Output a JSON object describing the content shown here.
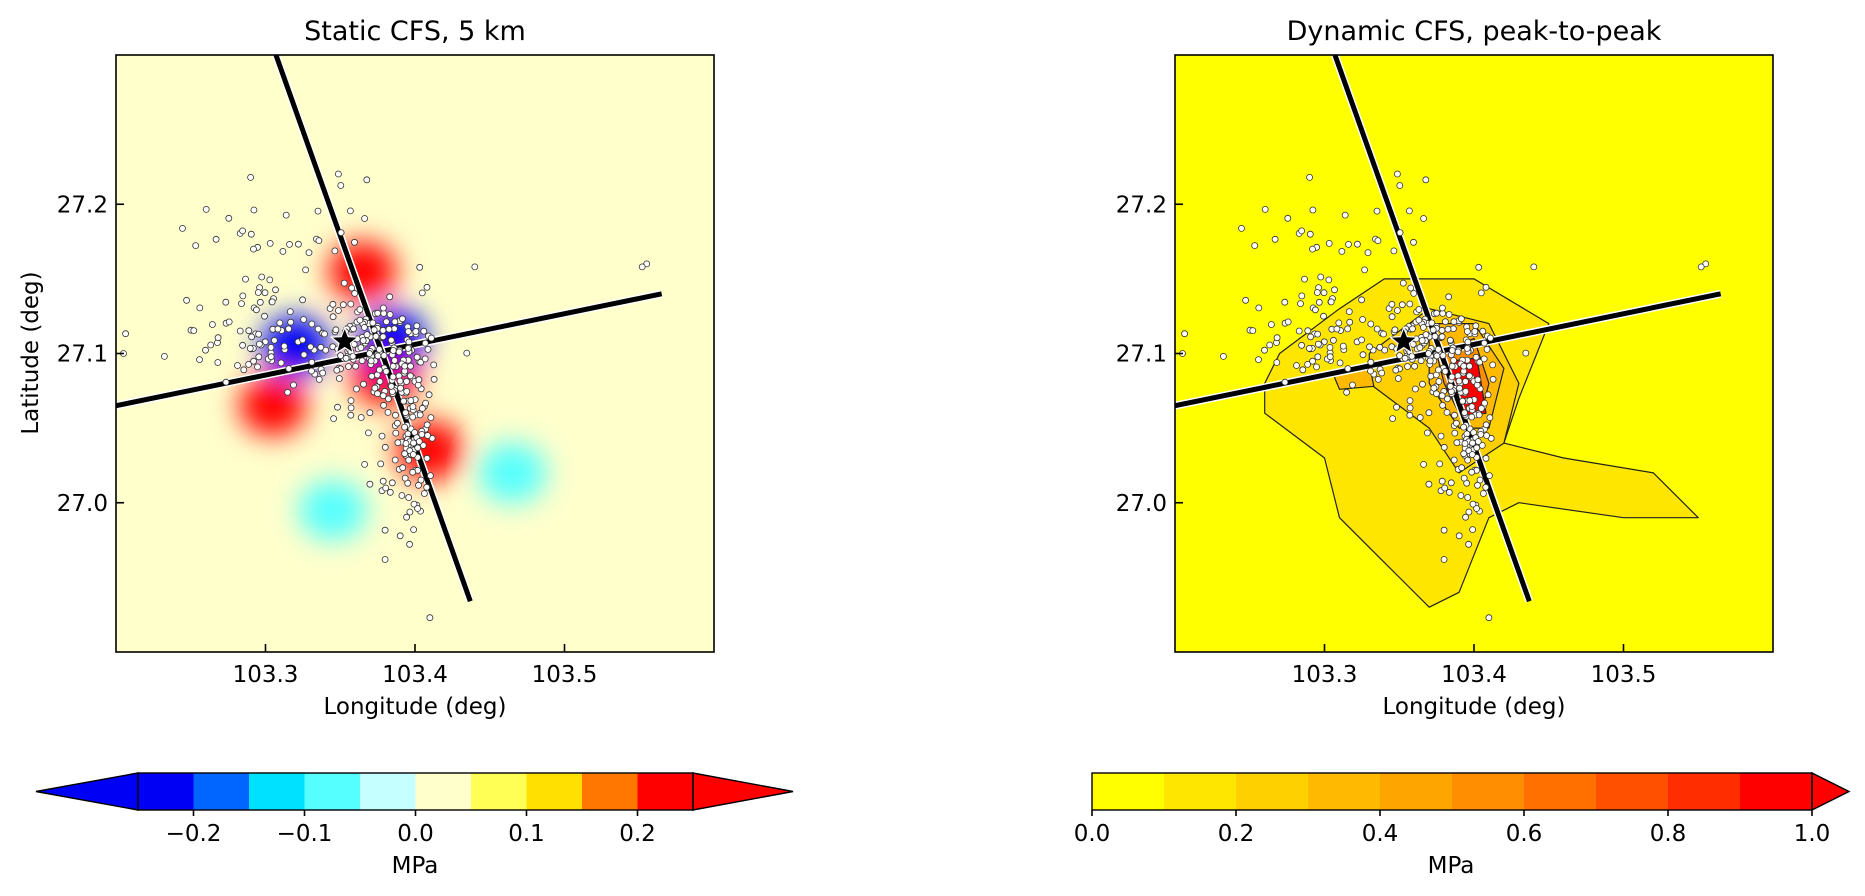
{
  "chart_data": [
    {
      "type": "heatmap",
      "title": "Static CFS, 5 km",
      "xlabel": "Longitude (deg)",
      "ylabel": "Latitude (deg)",
      "xlim": [
        103.2,
        103.6
      ],
      "ylim": [
        26.9,
        27.3
      ],
      "xticks": [
        "103.3",
        "103.4",
        "103.5"
      ],
      "yticks": [
        "27.0",
        "27.1",
        "27.2"
      ],
      "background_value": 0.0,
      "colorbar": {
        "label": "MPa",
        "ticks": [
          "−0.2",
          "−0.1",
          "0.0",
          "0.1",
          "0.2"
        ],
        "extend": "both",
        "levels": [
          -0.25,
          -0.2,
          -0.15,
          -0.1,
          -0.05,
          0.0,
          0.05,
          0.1,
          0.15,
          0.2,
          0.25
        ],
        "colors": [
          "#0000f5",
          "#0066ff",
          "#00e0ff",
          "#55ffff",
          "#c6ffff",
          "#ffffcc",
          "#ffff55",
          "#ffe000",
          "#ff7700",
          "#ff0000"
        ],
        "under_color": "#0000f5",
        "over_color": "#ff0000"
      },
      "fault_traces": [
        {
          "from": [
            103.2,
            27.065
          ],
          "to": [
            103.565,
            27.14
          ]
        },
        {
          "from": [
            103.307,
            27.3
          ],
          "to": [
            103.437,
            26.934
          ]
        }
      ],
      "epicenter": {
        "lon": 103.353,
        "lat": 27.108
      },
      "stress_lobes": [
        {
          "lon": 103.365,
          "lat": 27.155,
          "value": 0.22
        },
        {
          "lon": 103.305,
          "lat": 27.065,
          "value": 0.22
        },
        {
          "lon": 103.41,
          "lat": 27.035,
          "value": 0.22
        },
        {
          "lon": 103.38,
          "lat": 27.085,
          "value": 0.2
        },
        {
          "lon": 103.32,
          "lat": 27.105,
          "value": -0.22
        },
        {
          "lon": 103.385,
          "lat": 27.11,
          "value": -0.22
        },
        {
          "lon": 103.465,
          "lat": 27.02,
          "value": -0.1
        },
        {
          "lon": 103.345,
          "lat": 26.995,
          "value": -0.1
        }
      ]
    },
    {
      "type": "heatmap",
      "title": "Dynamic CFS, peak-to-peak",
      "xlabel": "Longitude (deg)",
      "ylabel": "",
      "xlim": [
        103.2,
        103.6
      ],
      "ylim": [
        26.9,
        27.3
      ],
      "xticks": [
        "103.3",
        "103.4",
        "103.5"
      ],
      "yticks": [
        "27.0",
        "27.1",
        "27.2"
      ],
      "background_value": 0.05,
      "colorbar": {
        "label": "MPa",
        "ticks": [
          "0.0",
          "0.2",
          "0.4",
          "0.6",
          "0.8",
          "1.0"
        ],
        "extend": "max",
        "levels": [
          0.0,
          0.1,
          0.2,
          0.3,
          0.4,
          0.5,
          0.6,
          0.7,
          0.8,
          0.9,
          1.0
        ],
        "colors": [
          "#ffff00",
          "#ffe600",
          "#ffd000",
          "#ffba00",
          "#ffa500",
          "#ff8f00",
          "#ff7000",
          "#ff5000",
          "#ff2d00",
          "#ff0000"
        ],
        "over_color": "#ff0000"
      },
      "fault_traces": [
        {
          "from": [
            103.2,
            27.065
          ],
          "to": [
            103.565,
            27.14
          ]
        },
        {
          "from": [
            103.307,
            27.3
          ],
          "to": [
            103.437,
            26.934
          ]
        }
      ],
      "epicenter": {
        "lon": 103.353,
        "lat": 27.108
      },
      "stress_zones": [
        {
          "level": 0.15,
          "points": [
            [
              103.27,
              27.1
            ],
            [
              103.31,
              27.13
            ],
            [
              103.34,
              27.15
            ],
            [
              103.4,
              27.15
            ],
            [
              103.45,
              27.12
            ],
            [
              103.43,
              27.07
            ],
            [
              103.42,
              27.04
            ],
            [
              103.46,
              27.03
            ],
            [
              103.52,
              27.02
            ],
            [
              103.55,
              26.99
            ],
            [
              103.5,
              26.99
            ],
            [
              103.43,
              27.0
            ],
            [
              103.41,
              26.99
            ],
            [
              103.39,
              26.94
            ],
            [
              103.37,
              26.93
            ],
            [
              103.34,
              26.96
            ],
            [
              103.31,
              26.99
            ],
            [
              103.3,
              27.03
            ],
            [
              103.26,
              27.06
            ],
            [
              103.26,
              27.08
            ]
          ]
        },
        {
          "level": 0.25,
          "points": [
            [
              103.33,
              27.1
            ],
            [
              103.37,
              27.13
            ],
            [
              103.41,
              27.12
            ],
            [
              103.43,
              27.08
            ],
            [
              103.42,
              27.04
            ],
            [
              103.39,
              27.02
            ],
            [
              103.37,
              27.05
            ],
            [
              103.33,
              27.08
            ]
          ]
        },
        {
          "level": 0.35,
          "points": [
            [
              103.37,
              27.12
            ],
            [
              103.4,
              27.12
            ],
            [
              103.42,
              27.09
            ],
            [
              103.41,
              27.05
            ],
            [
              103.39,
              27.05
            ],
            [
              103.37,
              27.08
            ]
          ]
        },
        {
          "level": 0.55,
          "points": [
            [
              103.375,
              27.1
            ],
            [
              103.4,
              27.11
            ],
            [
              103.41,
              27.08
            ],
            [
              103.405,
              27.06
            ],
            [
              103.39,
              27.06
            ],
            [
              103.38,
              27.08
            ]
          ]
        },
        {
          "level": 0.3,
          "points": [
            [
              103.305,
              27.088
            ],
            [
              103.33,
              27.093
            ],
            [
              103.333,
              27.078
            ],
            [
              103.31,
              27.076
            ]
          ]
        },
        {
          "level": 0.95,
          "points": [
            [
              103.385,
              27.095
            ],
            [
              103.402,
              27.097
            ],
            [
              103.408,
              27.06
            ],
            [
              103.395,
              27.058
            ],
            [
              103.382,
              27.075
            ]
          ]
        }
      ]
    }
  ]
}
